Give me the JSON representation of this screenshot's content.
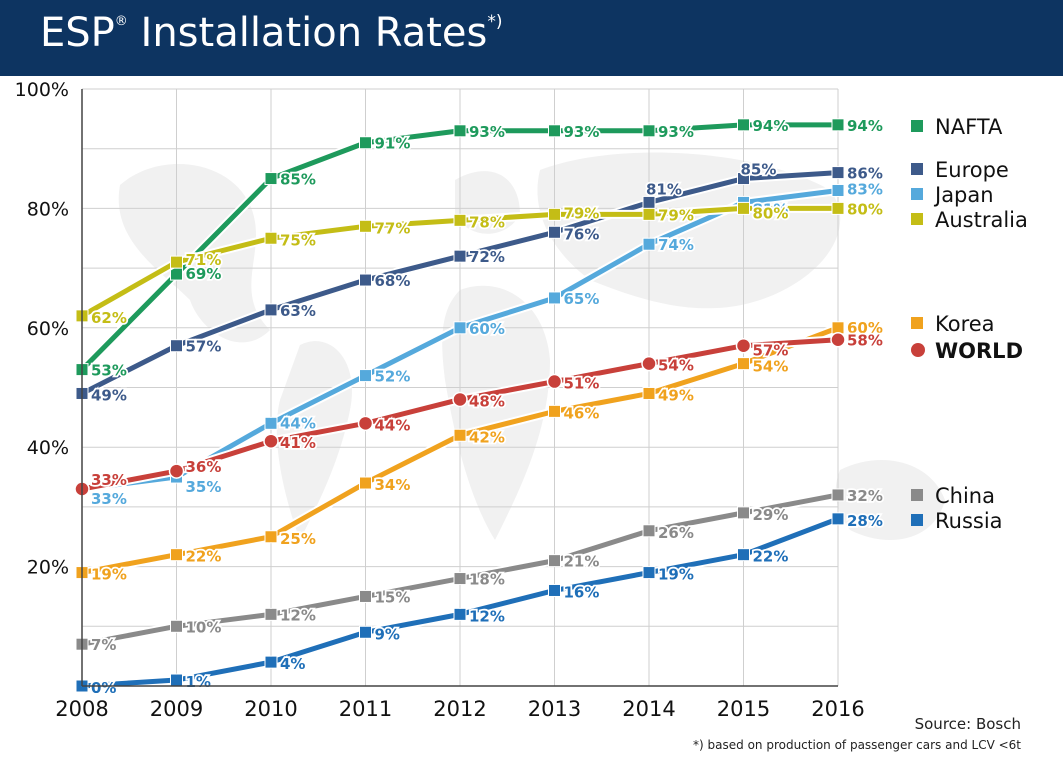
{
  "header": {
    "title_main": "ESP",
    "title_reg": "®",
    "title_rest": "Installation Rates",
    "title_note": "*)"
  },
  "source": "Source: Bosch",
  "footnote": "*) based on production of passenger cars and LCV <6t",
  "chart_data": {
    "type": "line",
    "title": "ESP® Installation Rates *)",
    "x": [
      "2008",
      "2009",
      "2010",
      "2011",
      "2012",
      "2013",
      "2014",
      "2015",
      "2016"
    ],
    "ylim": [
      0,
      100
    ],
    "yticks": [
      "20%",
      "40%",
      "60%",
      "80%",
      "100%"
    ],
    "grid": true,
    "legend_position": "right",
    "series": [
      {
        "name": "NAFTA",
        "color": "#1e9a5c",
        "values": [
          53,
          69,
          85,
          91,
          93,
          93,
          93,
          94,
          94
        ],
        "labels": [
          "53%",
          "69%",
          "85%",
          "91%",
          "93%",
          "93%",
          "93%",
          "94%",
          "94%"
        ]
      },
      {
        "name": "Europe",
        "color": "#3d5a8a",
        "values": [
          49,
          57,
          63,
          68,
          72,
          76,
          81,
          85,
          86
        ],
        "labels": [
          "49%",
          "57%",
          "63%",
          "68%",
          "72%",
          "76%",
          "81%",
          "85%",
          "86%"
        ]
      },
      {
        "name": "Japan",
        "color": "#55a9dc",
        "values": [
          33,
          35,
          44,
          52,
          60,
          65,
          74,
          81,
          83
        ],
        "labels": [
          "33%",
          "35%",
          "44%",
          "52%",
          "60%",
          "65%",
          "74%",
          "81%",
          "83%"
        ]
      },
      {
        "name": "Australia",
        "color": "#c4bd16",
        "values": [
          62,
          71,
          75,
          77,
          78,
          79,
          79,
          80,
          80
        ],
        "labels": [
          "62%",
          "71%",
          "75%",
          "77%",
          "78%",
          "79%",
          "79%",
          "80%",
          "80%"
        ]
      },
      {
        "name": "Korea",
        "color": "#f0a21e",
        "values": [
          19,
          22,
          25,
          34,
          42,
          46,
          49,
          54,
          60
        ],
        "labels": [
          "19%",
          "22%",
          "25%",
          "34%",
          "42%",
          "46%",
          "49%",
          "54%",
          "60%"
        ]
      },
      {
        "name": "WORLD",
        "color": "#c8403a",
        "values": [
          33,
          36,
          41,
          44,
          48,
          51,
          54,
          57,
          58
        ],
        "labels": [
          "33%",
          "36%",
          "41%",
          "44%",
          "48%",
          "51%",
          "54%",
          "57%",
          "58%"
        ]
      },
      {
        "name": "China",
        "color": "#8a8a8a",
        "values": [
          7,
          10,
          12,
          15,
          18,
          21,
          26,
          29,
          32
        ],
        "labels": [
          "7%",
          "10%",
          "12%",
          "15%",
          "18%",
          "21%",
          "26%",
          "29%",
          "32%"
        ]
      },
      {
        "name": "Russia",
        "color": "#1f6fb8",
        "values": [
          0,
          1,
          4,
          9,
          12,
          16,
          19,
          22,
          28
        ],
        "labels": [
          "0%",
          "1%",
          "4%",
          "9%",
          "12%",
          "16%",
          "19%",
          "22%",
          "28%"
        ]
      }
    ]
  }
}
